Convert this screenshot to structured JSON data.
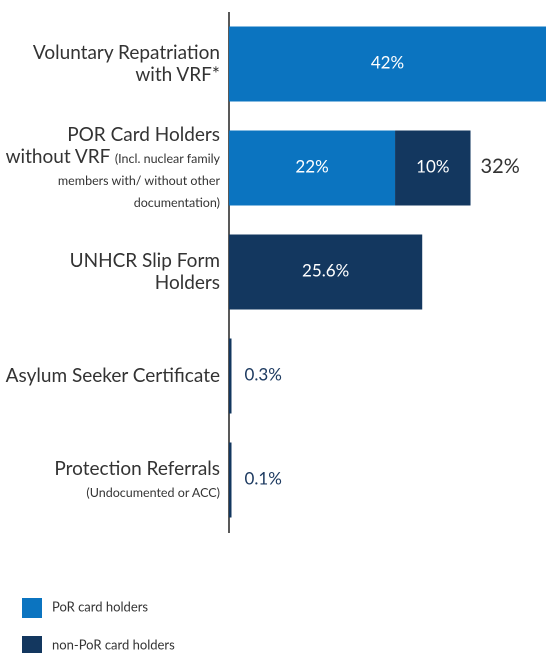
{
  "chart_data": {
    "type": "stacked-barh",
    "categories": [
      "Voluntary Repatriation with VRF*",
      "POR Card Holders without VRF",
      "UNHCR Slip Form Holders",
      "Asylum Seeker Certificate",
      "Protection Referrals"
    ],
    "category_notes": [
      null,
      "(Incl. nuclear family members with/ without other documentation)",
      null,
      null,
      "(Undocumented or ACC)"
    ],
    "series": [
      {
        "name": "PoR card holders",
        "color": "#0b74c0",
        "values": [
          42,
          22,
          null,
          null,
          null
        ],
        "value_labels": [
          "42%",
          "22%",
          null,
          null,
          null
        ]
      },
      {
        "name": "non-PoR card holders",
        "color": "#13375f",
        "values": [
          null,
          10,
          25.6,
          0.3,
          0.1
        ],
        "value_labels": [
          null,
          "10%",
          "25.6%",
          "0.3%",
          "0.1%"
        ]
      }
    ],
    "totals": [
      null,
      32,
      null,
      null,
      null
    ],
    "total_labels": [
      null,
      "32%",
      null,
      null,
      null
    ],
    "legend": "bottom-left"
  }
}
